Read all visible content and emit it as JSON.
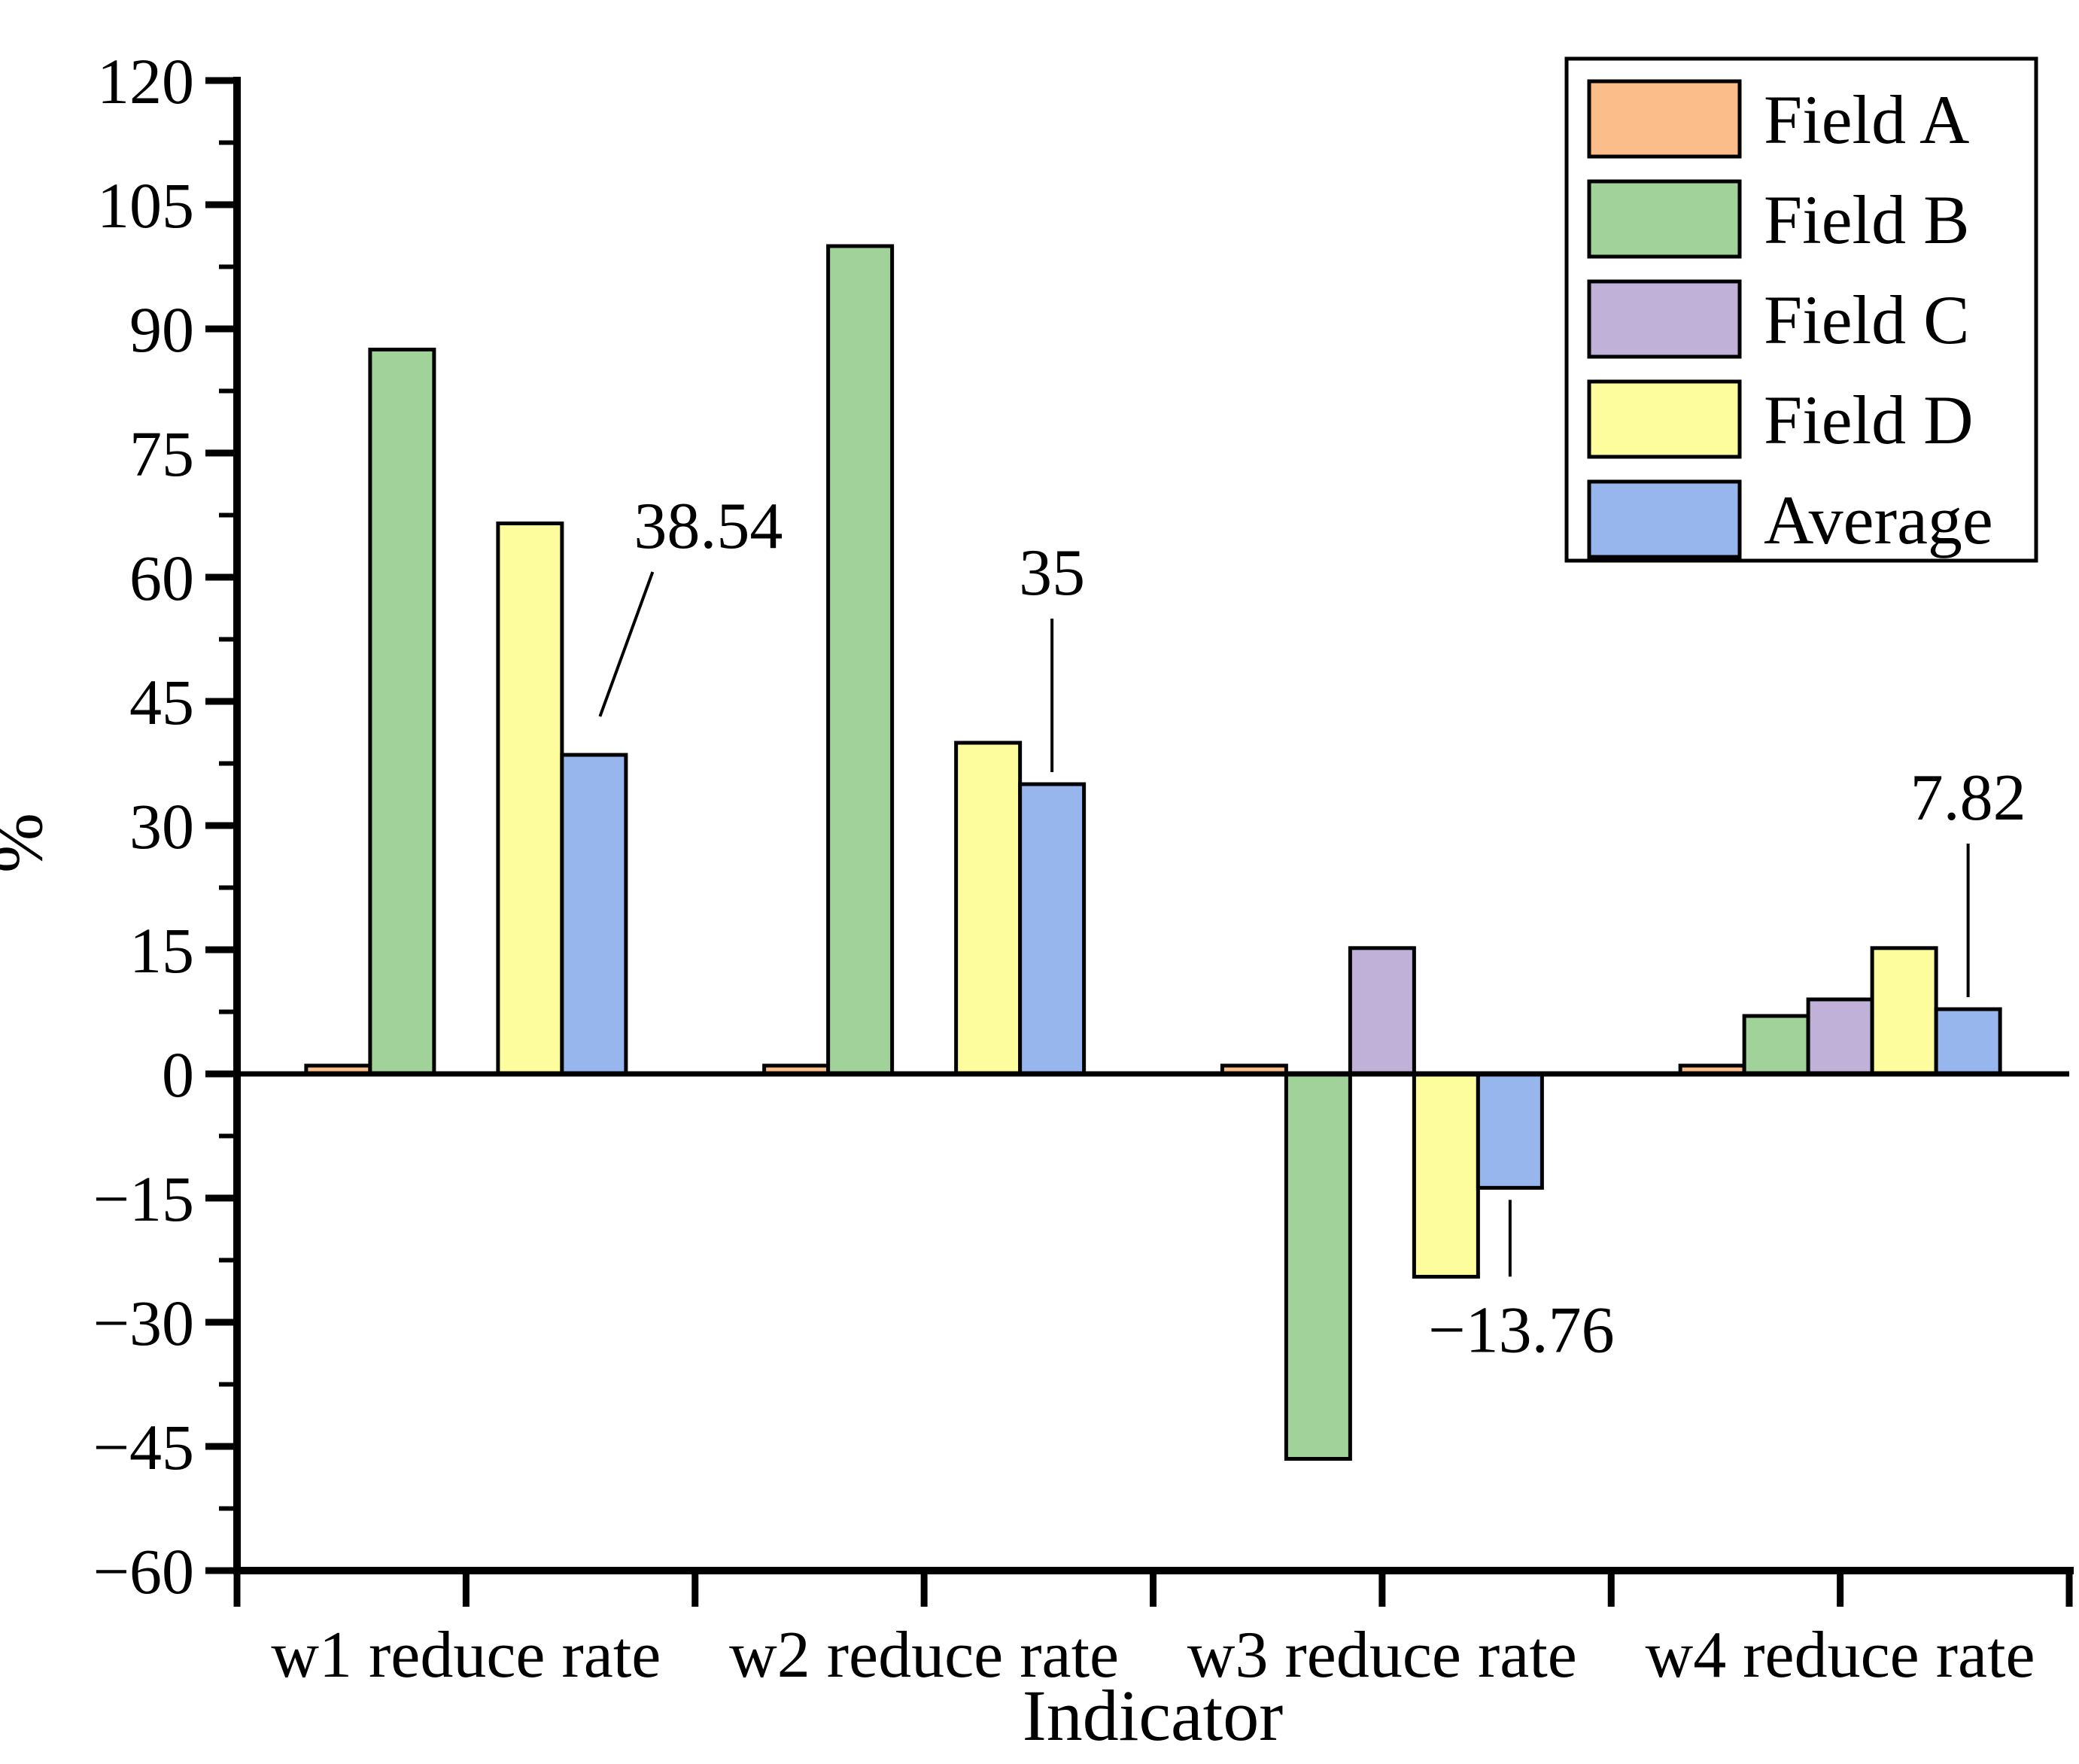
{
  "chart_data": {
    "type": "bar",
    "title": "",
    "xlabel": "Indicator",
    "ylabel": "%",
    "categories": [
      "w1 reduce rate",
      "w2 reduce rate",
      "w3 reduce rate",
      "w4 reduce rate"
    ],
    "series": [
      {
        "name": "Field A",
        "color": "#FBBE8A",
        "values": [
          1,
          1,
          1,
          1
        ]
      },
      {
        "name": "Field B",
        "color": "#A0D29A",
        "values": [
          87.5,
          100,
          -46.5,
          7
        ]
      },
      {
        "name": "Field C",
        "color": "#BFB1D8",
        "values": [
          0,
          0,
          15.2,
          9
        ]
      },
      {
        "name": "Field D",
        "color": "#FDFD9E",
        "values": [
          66.5,
          40,
          -24.5,
          15.2
        ]
      },
      {
        "name": "Average",
        "color": "#97B6ED",
        "values": [
          38.54,
          35,
          -13.76,
          7.82
        ]
      }
    ],
    "ylim": [
      -60,
      120
    ],
    "ytick_step": 15,
    "y_ticks": [
      -60,
      -45,
      -30,
      -15,
      0,
      15,
      30,
      45,
      60,
      75,
      90,
      105,
      120
    ],
    "annotations": [
      {
        "text": "38.54",
        "series": "Average",
        "category_index": 0,
        "value": 38.54
      },
      {
        "text": "35",
        "series": "Average",
        "category_index": 1,
        "value": 35
      },
      {
        "text": "-13.76",
        "series": "Average",
        "category_index": 2,
        "value": -13.76
      },
      {
        "text": "7.82",
        "series": "Average",
        "category_index": 3,
        "value": 7.82
      }
    ],
    "legend": {
      "position": "upper-right",
      "entries": [
        "Field A",
        "Field B",
        "Field C",
        "Field D",
        "Average"
      ]
    },
    "grid": false,
    "axis_color": "#000000",
    "bar_border_color": "#000000"
  }
}
